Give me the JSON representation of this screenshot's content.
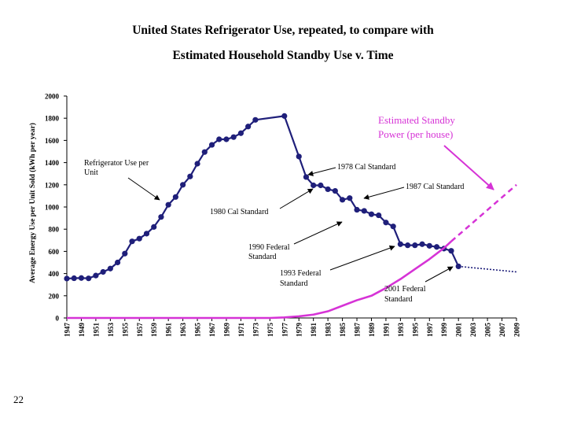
{
  "slide": {
    "number": "22"
  },
  "chart_data": {
    "type": "line",
    "title": "United States Refrigerator Use, repeated, to compare with",
    "subtitle": "Estimated Household Standby Use v. Time",
    "xlabel": "",
    "ylabel": "Average Energy Use per Unit Sold (kWh per year)",
    "xlim": [
      1947,
      2009
    ],
    "ylim": [
      0,
      2000
    ],
    "yticks": [
      0,
      200,
      400,
      600,
      800,
      1000,
      1200,
      1400,
      1600,
      1800,
      2000
    ],
    "xticks": [
      1947,
      1949,
      1951,
      1953,
      1955,
      1957,
      1959,
      1961,
      1963,
      1965,
      1967,
      1969,
      1971,
      1973,
      1975,
      1977,
      1979,
      1981,
      1983,
      1985,
      1987,
      1989,
      1991,
      1993,
      1995,
      1997,
      1999,
      2001,
      2003,
      2005,
      2007,
      2009
    ],
    "grid": false,
    "series": [
      {
        "name": "Refrigerator Use per Unit",
        "color": "#1f1f7a",
        "markers": true,
        "x": [
          1947,
          1948,
          1949,
          1950,
          1951,
          1952,
          1953,
          1954,
          1955,
          1956,
          1957,
          1958,
          1959,
          1960,
          1961,
          1962,
          1963,
          1964,
          1965,
          1966,
          1967,
          1968,
          1969,
          1970,
          1971,
          1972,
          1973,
          1977,
          1979,
          1980,
          1981,
          1982,
          1983,
          1984,
          1985,
          1986,
          1987,
          1988,
          1989,
          1990,
          1991,
          1992,
          1993,
          1994,
          1995,
          1996,
          1997,
          1998,
          1999,
          2000,
          2001
        ],
        "y": [
          355,
          358,
          360,
          357,
          382,
          415,
          445,
          500,
          580,
          690,
          715,
          760,
          820,
          910,
          1020,
          1090,
          1200,
          1275,
          1390,
          1495,
          1560,
          1610,
          1610,
          1630,
          1665,
          1725,
          1785,
          1820,
          1455,
          1270,
          1195,
          1195,
          1160,
          1145,
          1065,
          1080,
          975,
          965,
          935,
          925,
          860,
          825,
          665,
          655,
          655,
          665,
          650,
          640,
          625,
          605,
          465
        ]
      },
      {
        "name": "Refrigerator Use per Unit (projected)",
        "color": "#1f1f7a",
        "style": "dotted",
        "x": [
          2001,
          2009
        ],
        "y": [
          465,
          415
        ]
      },
      {
        "name": "Estimated Standby Power (per house)",
        "color": "#d633d6",
        "x": [
          1947,
          1975,
          1977,
          1979,
          1981,
          1983,
          1985,
          1987,
          1989,
          1991,
          1993,
          1995,
          1997,
          1999,
          2000
        ],
        "y": [
          0,
          0,
          5,
          15,
          30,
          60,
          110,
          160,
          200,
          270,
          350,
          440,
          530,
          630,
          690
        ]
      },
      {
        "name": "Estimated Standby Power (per house) (projected)",
        "color": "#d633d6",
        "style": "dashed",
        "x": [
          2000,
          2009
        ],
        "y": [
          690,
          1200
        ]
      }
    ],
    "annotations": [
      {
        "text": "Estimated Standby Power (per house)",
        "color": "#d633d6"
      },
      {
        "text": "Refrigerator Use per Unit"
      },
      {
        "text": "1978 Cal Standard"
      },
      {
        "text": "1987 Cal Standard"
      },
      {
        "text": "1980 Cal Standard"
      },
      {
        "text": "1990 Federal Standard"
      },
      {
        "text": "1993 Federal Standard"
      },
      {
        "text": "2001 Federal Standard"
      }
    ]
  }
}
